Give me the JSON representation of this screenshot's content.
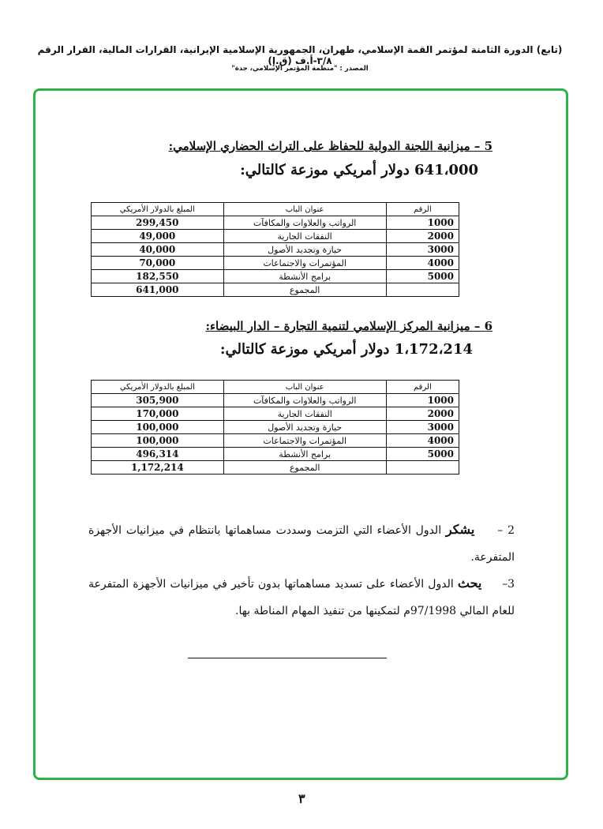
{
  "header": {
    "line1": "(تابع) الدورة الثامنة لمؤتمر القمة الإسلامي، طهران، الجمهورية الإسلامية الإيرانية، القرارات المالية، القرار الرقم ٣/٨-أ.ف (ق.إ)",
    "source": "المصدر : \"منظمة المؤتمر الإسلامي، جدة\""
  },
  "frame_color": "#2db34a",
  "section5": {
    "heading": "5 – ميزانية اللجنة الدولية للحفاظ على التراث الحضاري الإسلامي:",
    "total_line": "641،000 دولار أمريكي موزعة كالتالي:",
    "columns": [
      "الرقم",
      "عنوان الباب",
      "المبلغ بالدولار الأمريكي"
    ],
    "rows": [
      {
        "num": "1000",
        "title": "الرواتب والعلاوات والمكافآت",
        "amount": "299,450"
      },
      {
        "num": "2000",
        "title": "النفقات الجارية",
        "amount": "49,000"
      },
      {
        "num": "3000",
        "title": "حيازة وتجديد الأصول",
        "amount": "40,000"
      },
      {
        "num": "4000",
        "title": "المؤتمرات والاجتماعات",
        "amount": "70,000"
      },
      {
        "num": "5000",
        "title": "برامج الأنشطة",
        "amount": "182,550"
      }
    ],
    "total": {
      "label": "المجموع",
      "amount": "641,000"
    }
  },
  "section6": {
    "heading": "6 – ميزانية المركز الإسلامي لتنمية التجارة – الدار البيضاء:",
    "total_line": "1،172،214 دولار أمريكي موزعة كالتالي:",
    "columns": [
      "الرقم",
      "عنوان الباب",
      "المبلغ بالدولار الأمريكي"
    ],
    "rows": [
      {
        "num": "1000",
        "title": "الرواتب والعلاوات والمكافآت",
        "amount": "305,900"
      },
      {
        "num": "2000",
        "title": "النفقات الجارية",
        "amount": "170,000"
      },
      {
        "num": "3000",
        "title": "حيازة وتجديد الأصول",
        "amount": "100,000"
      },
      {
        "num": "4000",
        "title": "المؤتمرات والاجتماعات",
        "amount": "100,000"
      },
      {
        "num": "5000",
        "title": "برامج الأنشطة",
        "amount": "496,314"
      }
    ],
    "total": {
      "label": "المجموع",
      "amount": "1,172,214"
    }
  },
  "para2": {
    "num": "2 –",
    "verb": "يشكر",
    "text": "الدول الأعضاء التي التزمت وسددت مساهماتها بانتظام في ميزانيات الأجهزة المتفرعة."
  },
  "para3": {
    "num": "3–",
    "verb": "يحث",
    "text": "الدول الأعضاء على تسديد مساهماتها بدون تأخير في ميزانيات الأجهزة المتفرعة للعام المالي 97/1998م لتمكينها من تنفيذ المهام المناطة بها."
  },
  "page_number": "٣"
}
